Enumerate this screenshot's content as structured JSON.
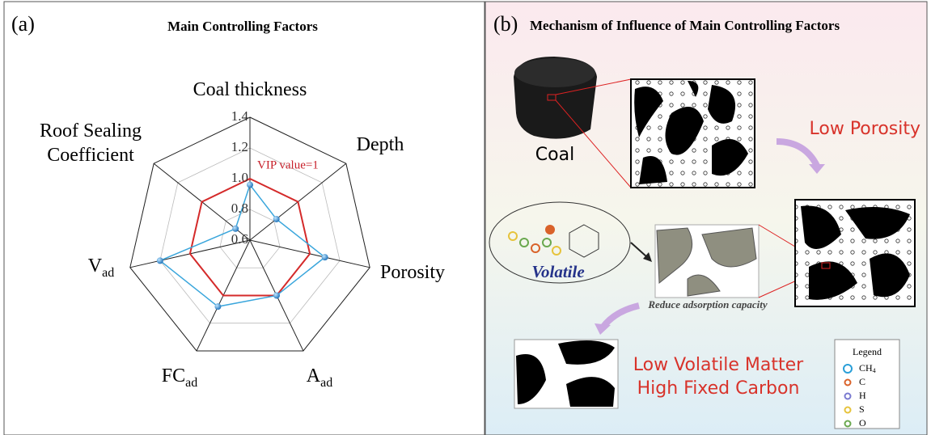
{
  "chart_data": {
    "type": "radar",
    "panel_label": "(a)",
    "title": "Main Controlling Factors",
    "categories": [
      "Coal thickness",
      "Depth",
      "Porosity",
      "A",
      "FC",
      "V",
      "Roof Sealing Coefficient"
    ],
    "category_subscripts": [
      null,
      null,
      null,
      "ad",
      "ad",
      "ad",
      null
    ],
    "series": [
      {
        "color": "#3aa6dc",
        "values": [
          0.96,
          0.82,
          1.1,
          1.0,
          1.08,
          1.2,
          0.72
        ]
      },
      {
        "color": "#d42a2a",
        "values": [
          1,
          1,
          1,
          1,
          1,
          1,
          1
        ]
      }
    ],
    "annotation": "VIP value=1",
    "ylim": [
      0.6,
      1.4
    ],
    "yticks": [
      0.6,
      0.8,
      {
        "value": 1.0,
        "label": "1.0"
      },
      1.2,
      1.4
    ],
    "grid": true
  },
  "mechanism": {
    "panel_label": "(b)",
    "title": "Mechanism of Influence of Main Controlling Factors",
    "coal_label": "Coal",
    "low_porosity": "Low Porosity",
    "volatile": "Volatile",
    "reduce": "Reduce adsorption capacity",
    "result_line1": "Low Volatile Matter",
    "result_line2": "High Fixed Carbon",
    "legend_title": "Legend",
    "legend_items": [
      {
        "label": "CH",
        "sub": "4"
      },
      {
        "label": "C"
      },
      {
        "label": "H"
      },
      {
        "label": "S"
      },
      {
        "label": "O"
      }
    ]
  }
}
